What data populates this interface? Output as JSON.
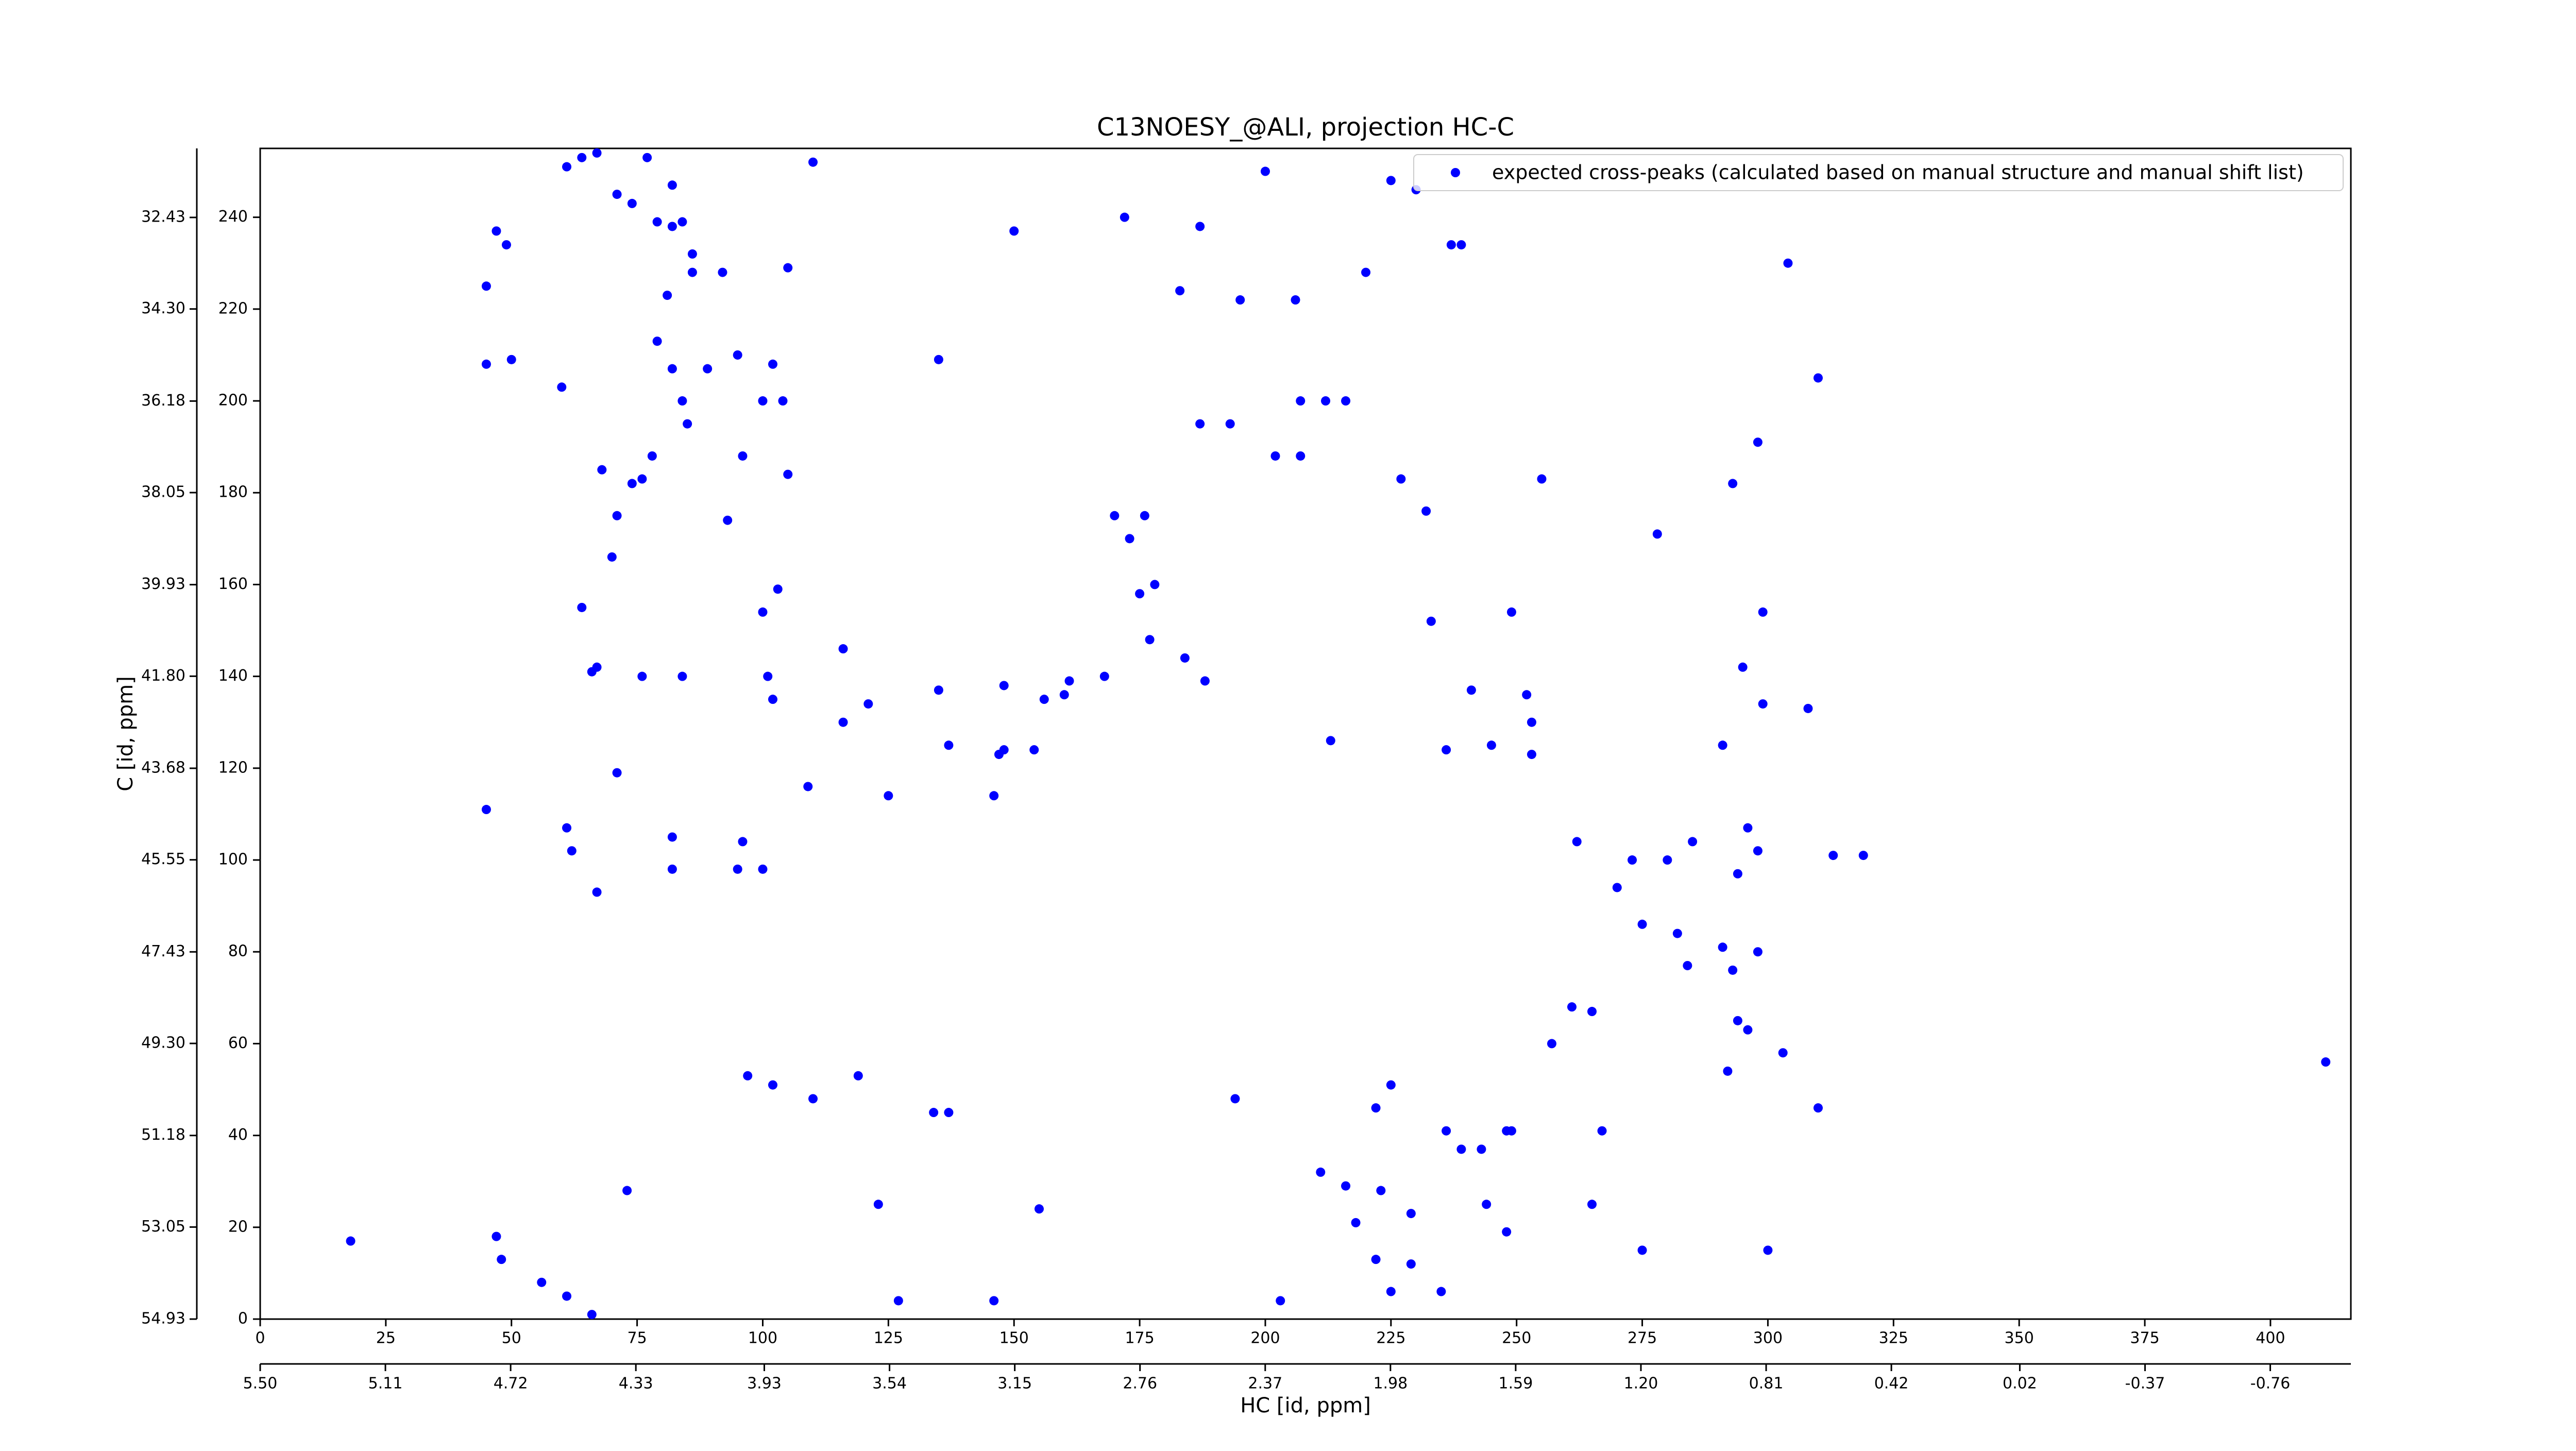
{
  "chart_data": {
    "type": "scatter",
    "title": "C13NOESY_@ALI, projection HC-C",
    "xlabel": "HC [id, ppm]",
    "ylabel": "C [id, ppm]",
    "legend": "upper right",
    "xlim": [
      0,
      416
    ],
    "xticks": [
      0,
      25,
      50,
      75,
      100,
      125,
      150,
      175,
      200,
      225,
      250,
      275,
      300,
      325,
      350,
      375,
      400
    ],
    "x2lim": [
      5.5,
      -1.011
    ],
    "x2ticks": [
      {
        "value": 5.5,
        "label": "5.50"
      },
      5.11,
      4.72,
      4.33,
      3.93,
      3.54,
      3.15,
      2.76,
      2.37,
      1.98,
      1.59,
      {
        "value": 1.2,
        "label": "1.20"
      },
      0.81,
      0.42,
      0.02,
      -0.37,
      -0.76
    ],
    "ylim": [
      0,
      255
    ],
    "yticks": [
      0,
      20,
      40,
      60,
      80,
      100,
      120,
      140,
      160,
      180,
      200,
      220,
      240
    ],
    "y2lim": [
      54.93,
      31.02
    ],
    "y2ticks": [
      54.93,
      53.05,
      51.18,
      {
        "value": 49.3,
        "label": "49.30"
      },
      47.43,
      45.55,
      43.68,
      {
        "value": 41.8,
        "label": "41.80"
      },
      39.93,
      38.05,
      36.18,
      {
        "value": 34.3,
        "label": "34.30"
      },
      32.43
    ],
    "series": [
      {
        "name": "expected cross-peaks (calculated based on manual structure and manual shift list)",
        "color": "#0000ff",
        "x": [
          45,
          47,
          49,
          50,
          45,
          61,
          64,
          67,
          71,
          74,
          77,
          79,
          82,
          84,
          82,
          86,
          86,
          92,
          81,
          79,
          82,
          89,
          95,
          102,
          100,
          104,
          105,
          110,
          60,
          84,
          85,
          78,
          74,
          76,
          68,
          71,
          70,
          96,
          105,
          103,
          100,
          93,
          64,
          67,
          76,
          84,
          101,
          102,
          116,
          116,
          121,
          109,
          125,
          135,
          135,
          150,
          137,
          148,
          148,
          147,
          154,
          146,
          156,
          160,
          161,
          170,
          176,
          173,
          175,
          178,
          177,
          184,
          168,
          188,
          172,
          183,
          187,
          200,
          195,
          206,
          207,
          212,
          216,
          187,
          193,
          202,
          207,
          220,
          225,
          230,
          237,
          239,
          227,
          232,
          304,
          310,
          298,
          293,
          278,
          255,
          299,
          295,
          308,
          299,
          313,
          319,
          249,
          233,
          213,
          236,
          245,
          252,
          253,
          253,
          241,
          291,
          296,
          298,
          294,
          285,
          280,
          273,
          262,
          270,
          275,
          282,
          284,
          291,
          298,
          293,
          294,
          296,
          303,
          292,
          310,
          261,
          257,
          265,
          194,
          222,
          225,
          236,
          239,
          243,
          248,
          267,
          249,
          211,
          216,
          223,
          218,
          229,
          244,
          248,
          265,
          222,
          225,
          229,
          235,
          203,
          275,
          300,
          411,
          97,
          102,
          110,
          119,
          134,
          137,
          123,
          155,
          127,
          146,
          66,
          61,
          56,
          47,
          48,
          73,
          18,
          45,
          61,
          62,
          67,
          82,
          82,
          96,
          95,
          100,
          71,
          66
        ],
        "values": [
          225,
          237,
          234,
          209,
          208,
          251,
          253,
          254,
          245,
          243,
          253,
          239,
          238,
          239,
          247,
          232,
          228,
          228,
          223,
          213,
          207,
          207,
          210,
          208,
          200,
          200,
          229,
          252,
          203,
          200,
          195,
          188,
          182,
          183,
          185,
          175,
          166,
          188,
          184,
          159,
          154,
          174,
          155,
          142,
          140,
          140,
          140,
          135,
          146,
          130,
          134,
          116,
          114,
          137,
          209,
          237,
          125,
          124,
          138,
          123,
          124,
          114,
          135,
          136,
          139,
          175,
          175,
          170,
          158,
          160,
          148,
          144,
          140,
          139,
          240,
          224,
          238,
          250,
          222,
          222,
          200,
          200,
          200,
          195,
          195,
          188,
          188,
          228,
          248,
          246,
          234,
          234,
          183,
          176,
          230,
          205,
          191,
          182,
          171,
          183,
          154,
          142,
          133,
          134,
          101,
          101,
          154,
          152,
          126,
          124,
          125,
          136,
          130,
          123,
          137,
          125,
          107,
          102,
          97,
          104,
          100,
          100,
          104,
          94,
          86,
          84,
          77,
          81,
          80,
          76,
          65,
          63,
          58,
          54,
          46,
          68,
          60,
          67,
          48,
          46,
          51,
          41,
          37,
          37,
          41,
          41,
          41,
          32,
          29,
          28,
          21,
          23,
          25,
          19,
          25,
          13,
          6,
          12,
          6,
          4,
          15,
          15,
          56,
          53,
          51,
          48,
          53,
          45,
          45,
          25,
          24,
          4,
          4,
          1,
          5,
          8,
          18,
          13,
          28,
          17,
          111,
          107,
          102,
          93,
          105,
          98,
          104,
          98,
          98,
          119,
          141
        ]
      }
    ]
  }
}
